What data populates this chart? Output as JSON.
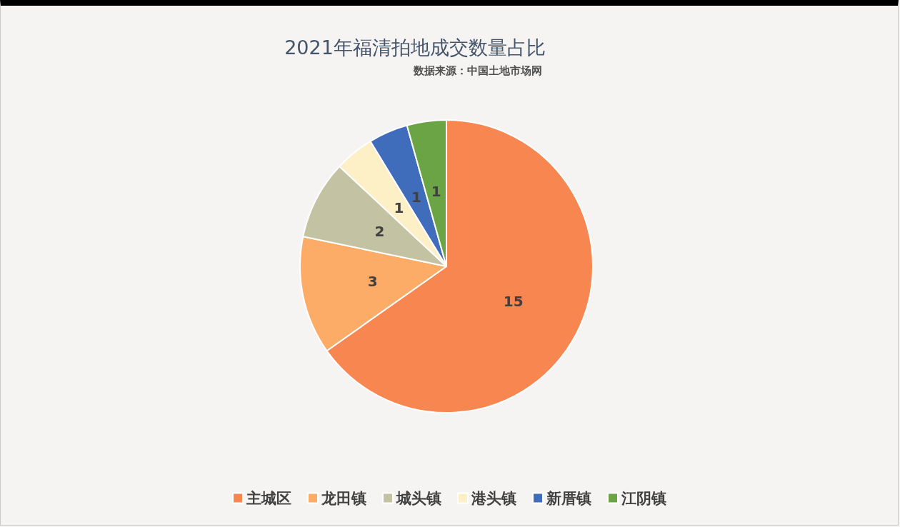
{
  "chart_data": {
    "type": "pie",
    "title": "2021年福清拍地成交数量占比",
    "subtitle": "数据来源：中国土地市场网",
    "categories": [
      "主城区",
      "龙田镇",
      "城头镇",
      "港头镇",
      "新厝镇",
      "江阴镇"
    ],
    "values": [
      15,
      3,
      2,
      1,
      1,
      1
    ],
    "colors": [
      "#f88650",
      "#fdac68",
      "#c3c3a3",
      "#fdefc6",
      "#3f6dbb",
      "#6aa444"
    ],
    "data_labels": true,
    "legend": "bottom"
  }
}
